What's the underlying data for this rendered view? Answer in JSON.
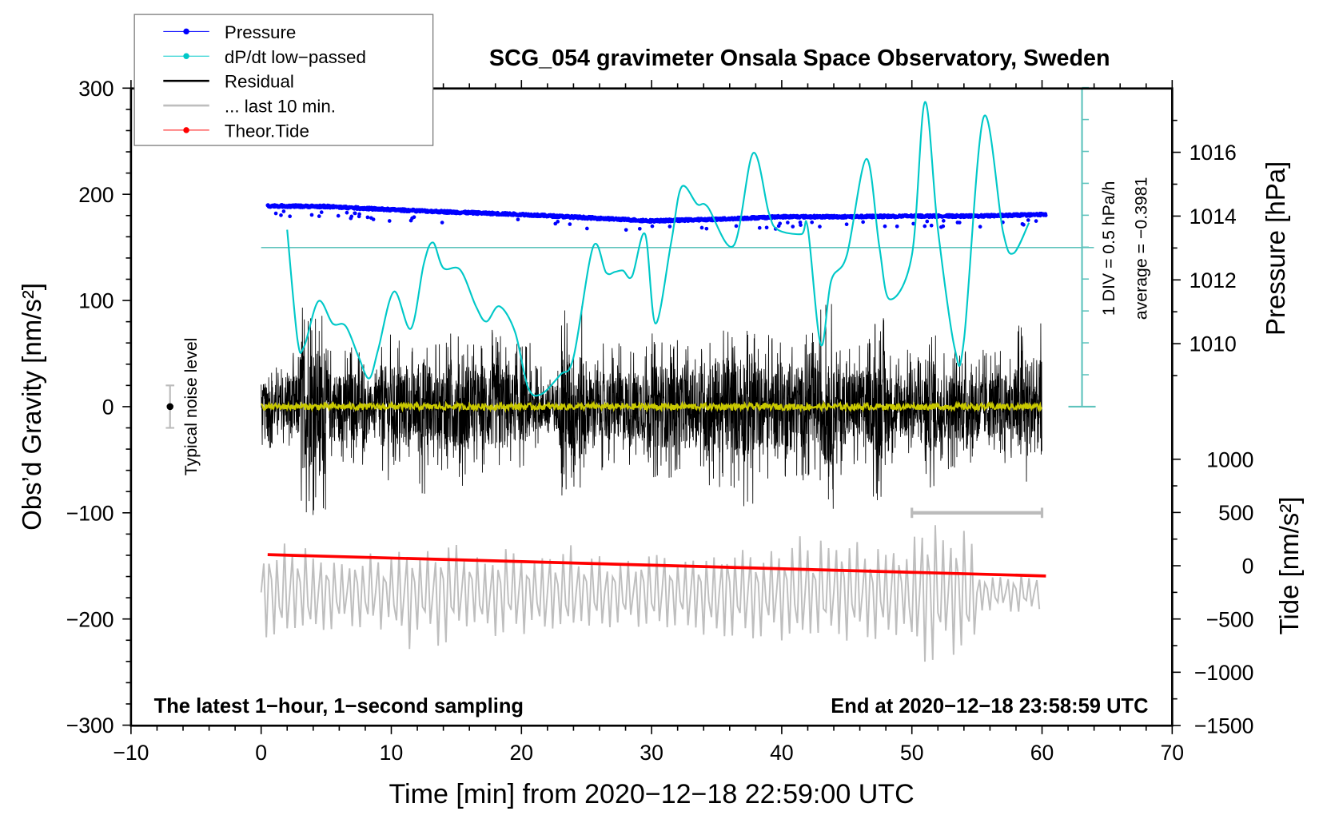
{
  "chart_data": {
    "type": "line",
    "title": "SCG_054 gravimeter Onsala Space Observatory, Sweden",
    "xlabel": "Time [min] from 2020−12−18 22:59:00 UTC",
    "ylabel_left": "Obs’d Gravity [nm/s²]",
    "ylabel_right_pressure": "Pressure [hPa]",
    "ylabel_right_tide": "Tide [nm/s²]",
    "xlim": [
      -10,
      70
    ],
    "ylim_gravity": [
      -300,
      300
    ],
    "pressure_range_shown": [
      1009,
      1017.5
    ],
    "tide_range_shown": [
      -1500,
      1000
    ],
    "x_ticks": [
      "−10",
      "0",
      "10",
      "20",
      "30",
      "40",
      "50",
      "60",
      "70"
    ],
    "x_tick_values": [
      -10,
      0,
      10,
      20,
      30,
      40,
      50,
      60,
      70
    ],
    "gravity_ticks": [
      "300",
      "200",
      "100",
      "0",
      "−100",
      "−200",
      "−300"
    ],
    "gravity_tick_values": [
      300,
      200,
      100,
      0,
      -100,
      -200,
      -300
    ],
    "pressure_ticks": [
      "1016",
      "1014",
      "1012",
      "1010"
    ],
    "pressure_tick_values": [
      1016,
      1014,
      1012,
      1010
    ],
    "tide_ticks": [
      "1000",
      "500",
      "0",
      "−500",
      "−1000",
      "−1500"
    ],
    "tide_tick_values": [
      1000,
      500,
      0,
      -500,
      -1000,
      -1500
    ],
    "annotations": {
      "bottom_left": "The latest 1−hour, 1−second sampling",
      "bottom_right": "End at 2020−12−18 23:58:59 UTC",
      "noise_label": "Typical noise level",
      "div_label": "1 DIV = 0.5 hPa/h",
      "average_label": "average = −0.3981"
    },
    "noise_level": {
      "x": -7,
      "center": 0,
      "halfwidth": 20
    },
    "last10_scale_bar": {
      "x": [
        50,
        60
      ],
      "y": -100
    },
    "legend": {
      "placement": "top-left",
      "items": [
        {
          "label": "Pressure",
          "color": "#0000ff",
          "marker": true
        },
        {
          "label": "dP/dt low−passed",
          "color": "#00c8c8",
          "marker": true
        },
        {
          "label": "Residual",
          "color": "#000000",
          "marker": false
        },
        {
          "label": "... last 10 min.",
          "color": "#bebebe",
          "marker": false
        },
        {
          "label": "Theor.Tide",
          "color": "#ff0000",
          "marker": true
        }
      ]
    },
    "series": [
      {
        "name": "Pressure",
        "unit": "hPa",
        "color": "#0000ff",
        "x": [
          0.5,
          5,
          10,
          15,
          20,
          25,
          30,
          35,
          40,
          45,
          50,
          55,
          60.3
        ],
        "y": [
          1014.32,
          1014.3,
          1014.2,
          1014.12,
          1014.05,
          1013.95,
          1013.85,
          1013.9,
          1013.98,
          1013.98,
          1014.0,
          1014.0,
          1014.05
        ],
        "scatter_noise": 0.06
      },
      {
        "name": "dP/dt low-passed",
        "unit": "hPa/h relative to reference line",
        "color": "#00c8c8",
        "x": [
          2.0,
          2.8,
          3.3,
          4.4,
          5.5,
          6.5,
          7.5,
          8.3,
          9.0,
          10.2,
          11.5,
          12.5,
          13.2,
          14.0,
          15.3,
          16.5,
          17.3,
          18.3,
          19.5,
          20.5,
          21.5,
          23.0,
          24.0,
          25.5,
          26.5,
          27.2,
          27.8,
          28.5,
          29.5,
          30.3,
          31.5,
          32.3,
          33.5,
          34.3,
          36.3,
          37.8,
          39.0,
          39.7,
          41.5,
          42.0,
          43.0,
          43.8,
          45.0,
          46.5,
          47.5,
          48.3,
          50.0,
          51.0,
          52.0,
          53.3,
          54.0,
          55.5,
          57.0,
          57.8,
          59.0
        ],
        "y": [
          0.28,
          -1.45,
          -1.55,
          -0.84,
          -1.19,
          -1.23,
          -1.72,
          -2.05,
          -1.59,
          -0.69,
          -1.27,
          -0.25,
          0.08,
          -0.32,
          -0.35,
          -0.92,
          -1.16,
          -0.92,
          -1.32,
          -2.19,
          -2.3,
          -1.99,
          -1.72,
          0.01,
          -0.39,
          -0.38,
          -0.36,
          -0.45,
          0.21,
          -1.19,
          0.08,
          0.95,
          0.68,
          0.64,
          0.03,
          1.48,
          0.55,
          0.28,
          0.21,
          0.31,
          -1.52,
          -0.52,
          -0.12,
          1.39,
          0.01,
          -0.81,
          -0.12,
          2.28,
          0.28,
          -1.59,
          -1.45,
          2.04,
          0.25,
          -0.09,
          0.39
        ]
      },
      {
        "name": "Residual",
        "unit": "nm/s²",
        "color": "#000000",
        "x_range": [
          0,
          60
        ],
        "envelope_per_minute": [
          40,
          40,
          55,
          105,
          100,
          60,
          60,
          60,
          35,
          70,
          70,
          60,
          85,
          60,
          75,
          75,
          60,
          75,
          75,
          60,
          60,
          40,
          40,
          95,
          95,
          50,
          60,
          60,
          60,
          60,
          70,
          70,
          60,
          60,
          80,
          80,
          80,
          95,
          70,
          70,
          70,
          70,
          70,
          100,
          65,
          65,
          65,
          90,
          55,
          55,
          55,
          80,
          60,
          60,
          55,
          55,
          55,
          55,
          80,
          80
        ]
      },
      {
        "name": "Residual low-passed",
        "unit": "nm/s²",
        "color": "#c8c800",
        "x_range": [
          0,
          60
        ],
        "amplitude": 3
      },
      {
        "name": "... last 10 min.",
        "unit": "nm/s²",
        "color": "#bebebe",
        "x_range": [
          0,
          60
        ],
        "center": -190,
        "envelope_per_5min": [
          50,
          40,
          55,
          45,
          45,
          40,
          45,
          50,
          55,
          50,
          75,
          20
        ]
      },
      {
        "name": "Theor.Tide",
        "unit": "nm/s²",
        "color": "#ff0000",
        "x": [
          0.5,
          60.3
        ],
        "y": [
          104,
          -96
        ]
      }
    ]
  }
}
